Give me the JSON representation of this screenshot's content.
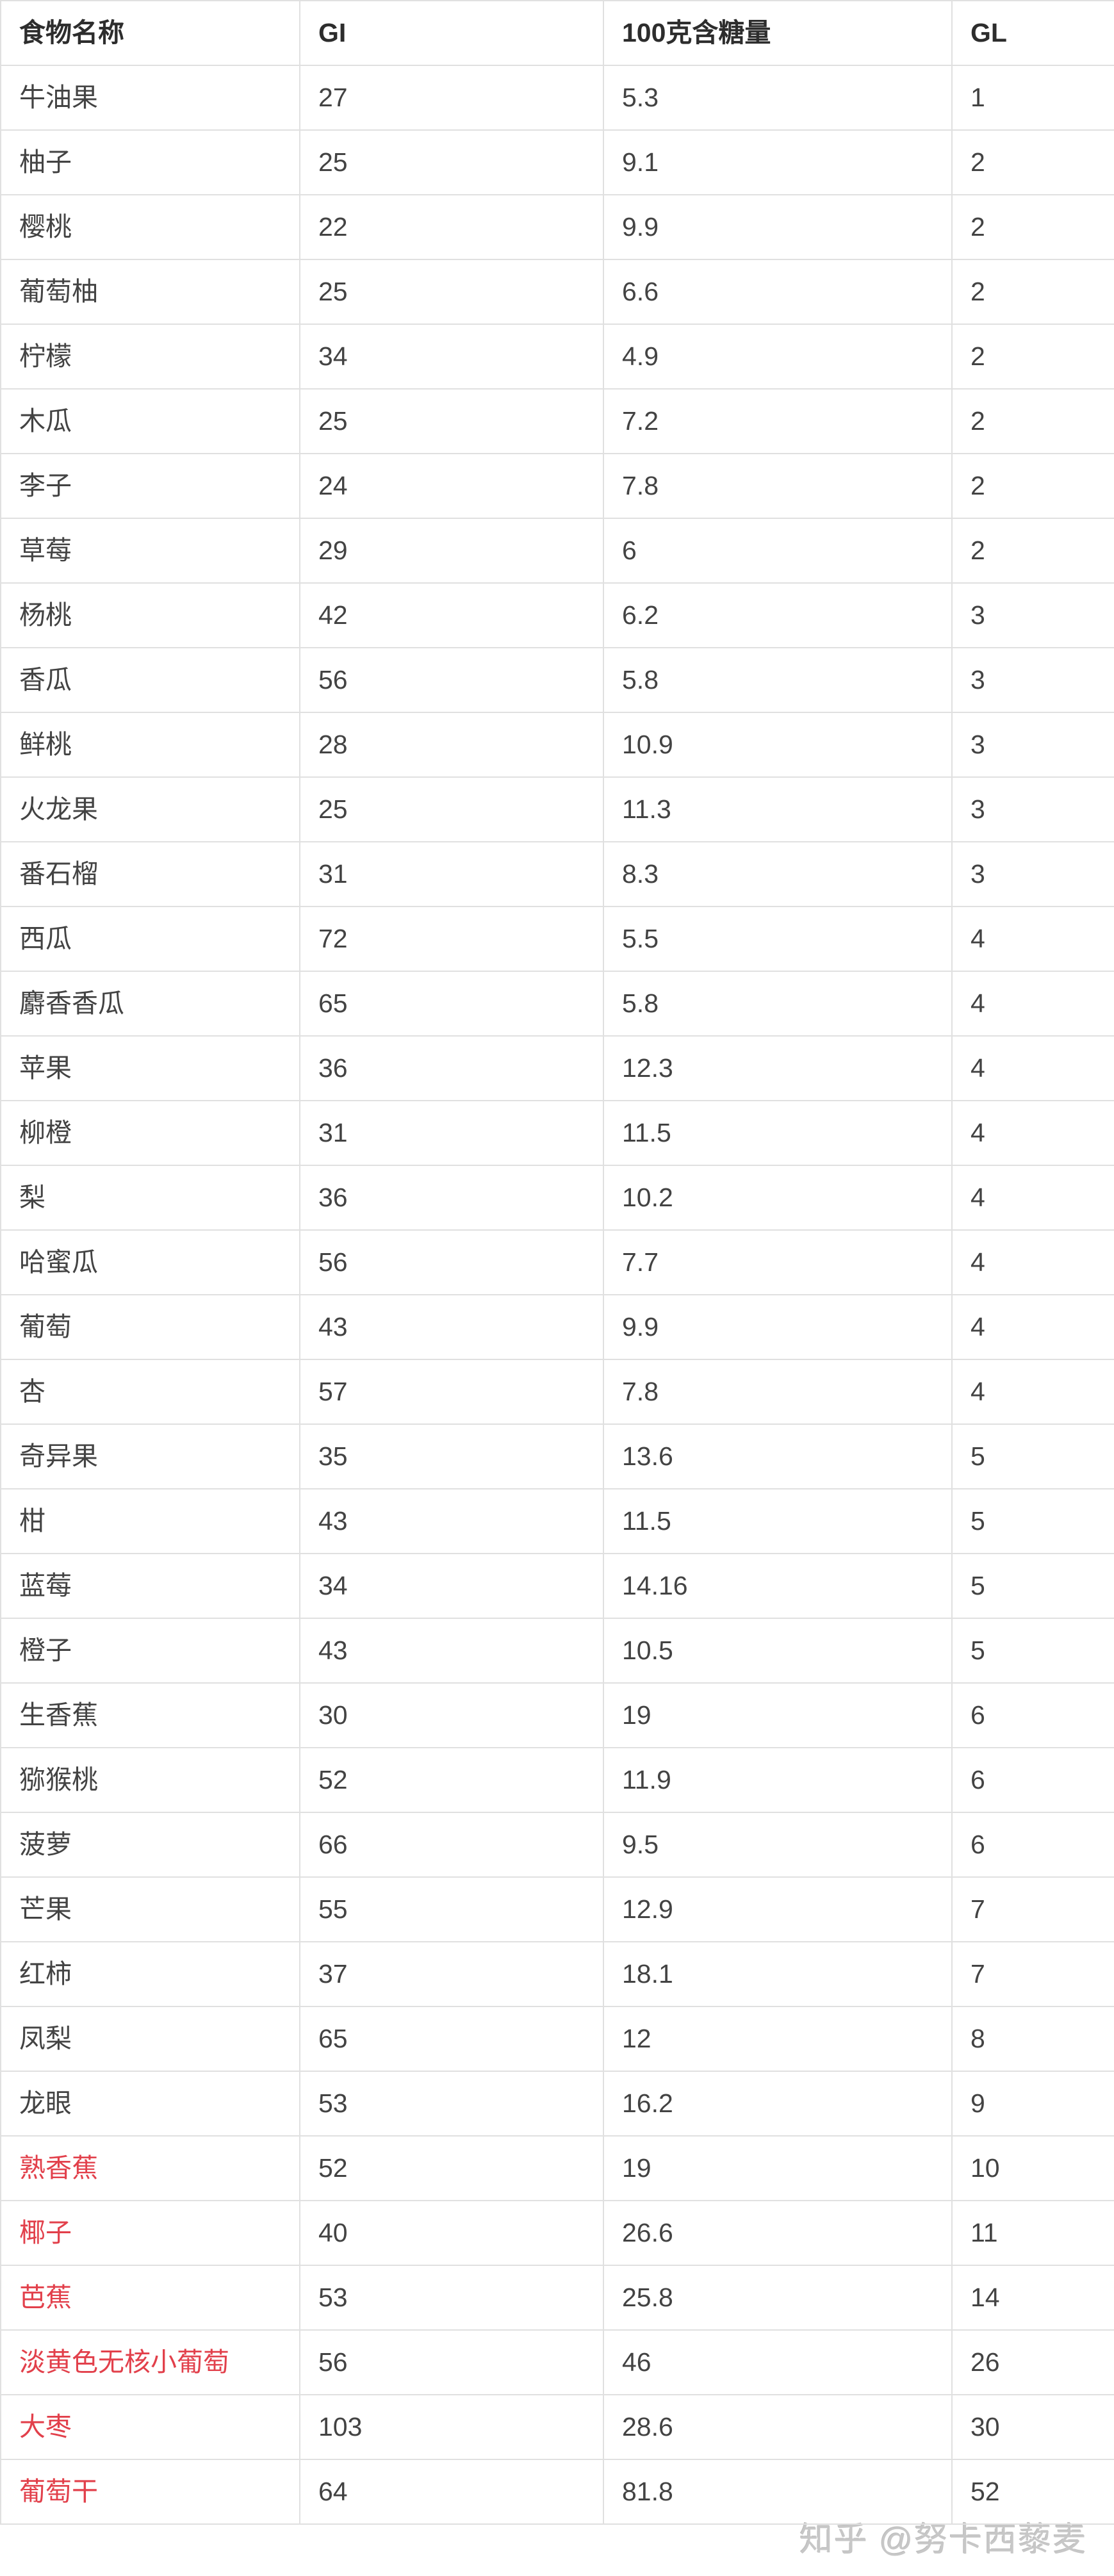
{
  "chart_data": {
    "type": "table",
    "columns": [
      "食物名称",
      "GI",
      "100克含糖量",
      "GL"
    ],
    "rows": [
      {
        "name": "牛油果",
        "gi": "27",
        "sugar": "5.3",
        "gl": "1",
        "highlight": false
      },
      {
        "name": "柚子",
        "gi": "25",
        "sugar": "9.1",
        "gl": "2",
        "highlight": false
      },
      {
        "name": "樱桃",
        "gi": "22",
        "sugar": "9.9",
        "gl": "2",
        "highlight": false
      },
      {
        "name": "葡萄柚",
        "gi": "25",
        "sugar": "6.6",
        "gl": "2",
        "highlight": false
      },
      {
        "name": "柠檬",
        "gi": "34",
        "sugar": "4.9",
        "gl": "2",
        "highlight": false
      },
      {
        "name": "木瓜",
        "gi": "25",
        "sugar": "7.2",
        "gl": "2",
        "highlight": false
      },
      {
        "name": "李子",
        "gi": "24",
        "sugar": "7.8",
        "gl": "2",
        "highlight": false
      },
      {
        "name": "草莓",
        "gi": "29",
        "sugar": "6",
        "gl": "2",
        "highlight": false
      },
      {
        "name": "杨桃",
        "gi": "42",
        "sugar": "6.2",
        "gl": "3",
        "highlight": false
      },
      {
        "name": "香瓜",
        "gi": "56",
        "sugar": "5.8",
        "gl": "3",
        "highlight": false
      },
      {
        "name": "鲜桃",
        "gi": "28",
        "sugar": "10.9",
        "gl": "3",
        "highlight": false
      },
      {
        "name": "火龙果",
        "gi": "25",
        "sugar": "11.3",
        "gl": "3",
        "highlight": false
      },
      {
        "name": "番石榴",
        "gi": "31",
        "sugar": "8.3",
        "gl": "3",
        "highlight": false
      },
      {
        "name": "西瓜",
        "gi": "72",
        "sugar": "5.5",
        "gl": "4",
        "highlight": false
      },
      {
        "name": "麝香香瓜",
        "gi": "65",
        "sugar": "5.8",
        "gl": "4",
        "highlight": false
      },
      {
        "name": "苹果",
        "gi": "36",
        "sugar": "12.3",
        "gl": "4",
        "highlight": false
      },
      {
        "name": "柳橙",
        "gi": "31",
        "sugar": "11.5",
        "gl": "4",
        "highlight": false
      },
      {
        "name": "梨",
        "gi": "36",
        "sugar": "10.2",
        "gl": "4",
        "highlight": false
      },
      {
        "name": "哈蜜瓜",
        "gi": "56",
        "sugar": "7.7",
        "gl": "4",
        "highlight": false
      },
      {
        "name": "葡萄",
        "gi": "43",
        "sugar": "9.9",
        "gl": "4",
        "highlight": false
      },
      {
        "name": "杏",
        "gi": "57",
        "sugar": "7.8",
        "gl": "4",
        "highlight": false
      },
      {
        "name": "奇异果",
        "gi": "35",
        "sugar": "13.6",
        "gl": "5",
        "highlight": false
      },
      {
        "name": "柑",
        "gi": "43",
        "sugar": "11.5",
        "gl": "5",
        "highlight": false
      },
      {
        "name": "蓝莓",
        "gi": "34",
        "sugar": "14.16",
        "gl": "5",
        "highlight": false
      },
      {
        "name": "橙子",
        "gi": "43",
        "sugar": "10.5",
        "gl": "5",
        "highlight": false
      },
      {
        "name": "生香蕉",
        "gi": "30",
        "sugar": "19",
        "gl": "6",
        "highlight": false
      },
      {
        "name": "猕猴桃",
        "gi": "52",
        "sugar": "11.9",
        "gl": "6",
        "highlight": false
      },
      {
        "name": "菠萝",
        "gi": "66",
        "sugar": "9.5",
        "gl": "6",
        "highlight": false
      },
      {
        "name": "芒果",
        "gi": "55",
        "sugar": "12.9",
        "gl": "7",
        "highlight": false
      },
      {
        "name": "红柿",
        "gi": "37",
        "sugar": "18.1",
        "gl": "7",
        "highlight": false
      },
      {
        "name": "凤梨",
        "gi": "65",
        "sugar": "12",
        "gl": "8",
        "highlight": false
      },
      {
        "name": "龙眼",
        "gi": "53",
        "sugar": "16.2",
        "gl": "9",
        "highlight": false
      },
      {
        "name": "熟香蕉",
        "gi": "52",
        "sugar": "19",
        "gl": "10",
        "highlight": true
      },
      {
        "name": "椰子",
        "gi": "40",
        "sugar": "26.6",
        "gl": "11",
        "highlight": true
      },
      {
        "name": "芭蕉",
        "gi": "53",
        "sugar": "25.8",
        "gl": "14",
        "highlight": true
      },
      {
        "name": "淡黄色无核小葡萄",
        "gi": "56",
        "sugar": "46",
        "gl": "26",
        "highlight": true
      },
      {
        "name": "大枣",
        "gi": "103",
        "sugar": "28.6",
        "gl": "30",
        "highlight": true
      },
      {
        "name": "葡萄干",
        "gi": "64",
        "sugar": "81.8",
        "gl": "52",
        "highlight": true
      }
    ]
  },
  "watermark": {
    "text": "知乎 @努卡西藜麦"
  },
  "colors": {
    "background": "#ffffff",
    "border": "#e0e0e0",
    "header_text": "#2d2d2d",
    "body_text": "#434343",
    "highlight_red": "#e2404b",
    "watermark_gray": "#c7c7c7"
  }
}
